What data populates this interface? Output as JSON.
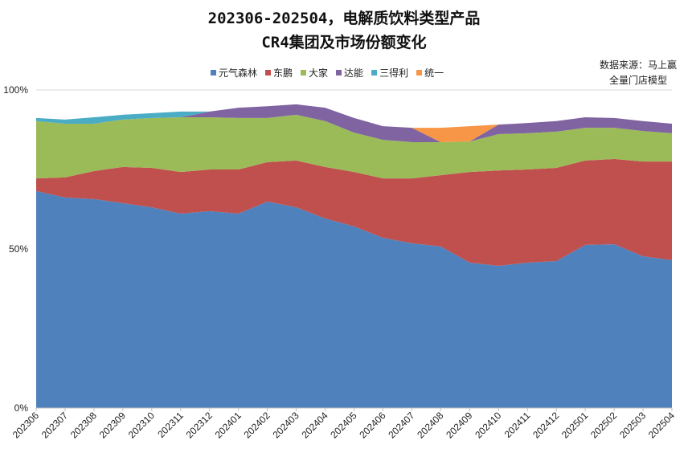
{
  "title_line1": "202306-202504，电解质饮料类型产品",
  "title_line2": "CR4集团及市场份额变化",
  "source_line1": "数据来源：马上赢",
  "source_line2": "全量门店模型",
  "chart_data": {
    "type": "area",
    "stacked": true,
    "title": "202306-202504，电解质饮料类型产品 CR4集团及市场份额变化",
    "xlabel": "",
    "ylabel": "",
    "ylim": [
      0,
      100
    ],
    "y_ticks": [
      "0%",
      "50%",
      "100%"
    ],
    "grid": true,
    "legend_position": "top",
    "categories": [
      "202306",
      "202307",
      "202308",
      "202309",
      "202310",
      "202311",
      "202312",
      "202401",
      "202402",
      "202403",
      "202404",
      "202405",
      "202406",
      "202407",
      "202408",
      "202409",
      "202410",
      "202411",
      "202412",
      "202501",
      "202502",
      "202503",
      "202504"
    ],
    "series": [
      {
        "name": "元气森林",
        "color": "#4f81bd",
        "values": [
          68.2,
          66.2,
          65.7,
          64.4,
          63.1,
          61.1,
          61.9,
          61.1,
          64.9,
          63.1,
          59.6,
          57.1,
          53.5,
          51.8,
          50.8,
          45.7,
          44.7,
          45.7,
          46.2,
          51.3,
          51.5,
          47.7,
          46.5
        ]
      },
      {
        "name": "东鹏",
        "color": "#c0504d",
        "values": [
          4.0,
          6.3,
          8.8,
          11.4,
          12.4,
          13.1,
          13.1,
          13.9,
          12.4,
          14.7,
          16.2,
          17.1,
          18.7,
          20.4,
          22.4,
          28.5,
          30.0,
          29.3,
          29.3,
          26.5,
          26.8,
          29.8,
          31.0
        ]
      },
      {
        "name": "大家",
        "color": "#9bbb59",
        "values": [
          18.0,
          16.9,
          14.9,
          14.9,
          15.7,
          17.2,
          16.4,
          16.2,
          13.9,
          14.4,
          14.4,
          12.4,
          12.1,
          11.4,
          10.4,
          9.6,
          11.4,
          11.4,
          11.4,
          10.3,
          9.8,
          9.6,
          8.9
        ]
      },
      {
        "name": "达能",
        "color": "#8064a2",
        "values": [
          0,
          0,
          0,
          0,
          0,
          0,
          1.8,
          3.2,
          3.7,
          3.3,
          4.2,
          4.6,
          4.3,
          4.5,
          0,
          0,
          3.0,
          3.2,
          3.3,
          3.3,
          3.1,
          3.1,
          3.0
        ]
      },
      {
        "name": "三得利",
        "color": "#4bacc6",
        "values": [
          1.0,
          1.3,
          2.0,
          1.5,
          1.5,
          1.8,
          0,
          0,
          0,
          0,
          0,
          0,
          0,
          0,
          0,
          0,
          0,
          0,
          0,
          0,
          0,
          0,
          0
        ]
      },
      {
        "name": "统一",
        "color": "#f79646",
        "values": [
          0,
          0,
          0,
          0,
          0,
          0,
          0,
          0,
          0,
          0,
          0,
          0,
          0,
          0,
          4.5,
          4.8,
          0,
          0,
          0,
          0,
          0,
          0,
          0
        ]
      }
    ]
  }
}
